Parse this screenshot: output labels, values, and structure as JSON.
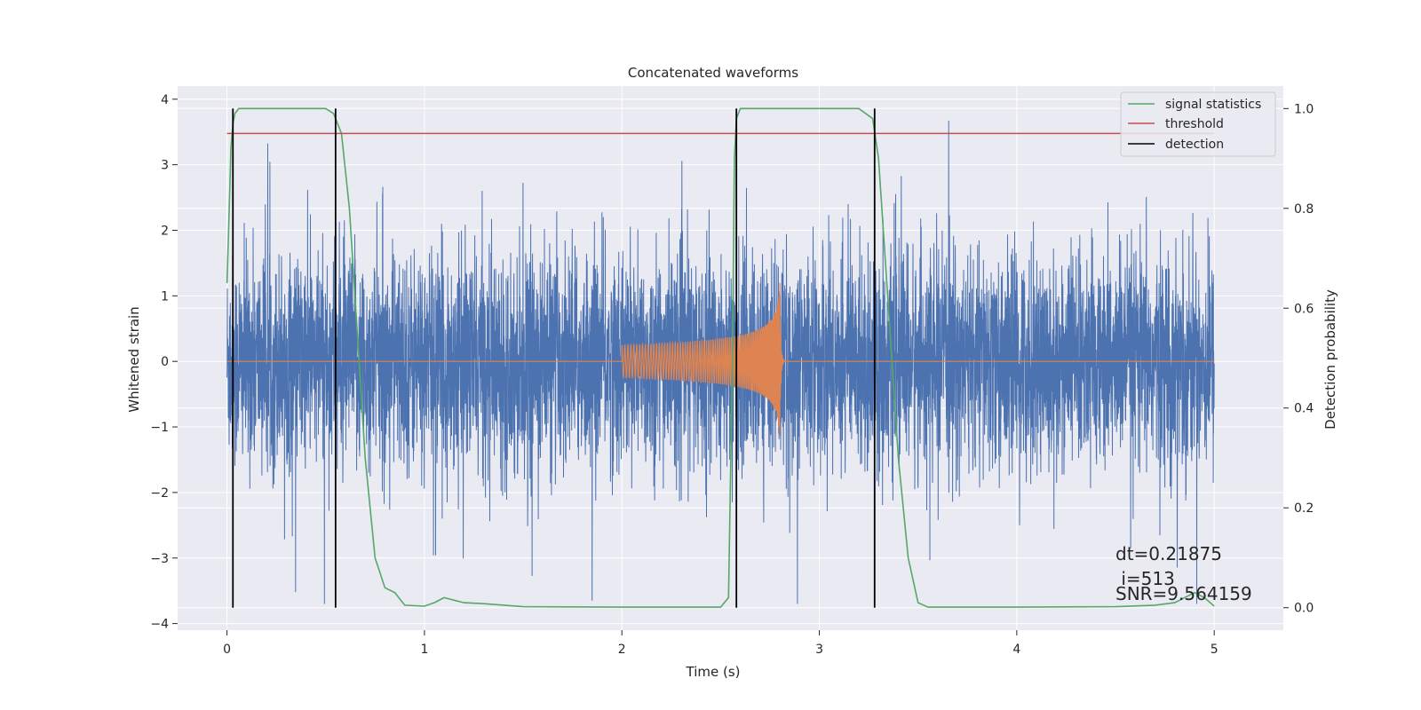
{
  "chart_data": {
    "type": "line",
    "title": "Concatenated waveforms",
    "xlabel": "Time (s)",
    "ylabel": "Whitened strain",
    "y2label": "Detection probability",
    "xlim": [
      -0.25,
      5.35
    ],
    "ylim": [
      -4.1,
      4.2
    ],
    "y2lim": [
      -0.045,
      1.045
    ],
    "xticks": [
      0,
      1,
      2,
      3,
      4,
      5
    ],
    "xtick_labels": [
      "0",
      "1",
      "2",
      "3",
      "4",
      "5"
    ],
    "yticks": [
      -4,
      -3,
      -2,
      -1,
      0,
      1,
      2,
      3,
      4
    ],
    "ytick_labels": [
      "−4",
      "−3",
      "−2",
      "−1",
      "0",
      "1",
      "2",
      "3",
      "4"
    ],
    "y2ticks": [
      0.0,
      0.2,
      0.4,
      0.6,
      0.8,
      1.0
    ],
    "y2tick_labels": [
      "0.0",
      "0.2",
      "0.4",
      "0.6",
      "0.8",
      "1.0"
    ],
    "grid": true,
    "legend_position": "top-right",
    "colors": {
      "background": "#eaeaf2",
      "grid": "#ffffff",
      "strain": "#4c72b0",
      "injection": "#dd8452",
      "signal": "#55a868",
      "threshold": "#c44e52",
      "detection": "#000000"
    },
    "strain": {
      "x_range": [
        0,
        5
      ],
      "typical_amplitude": 0.8,
      "max": 3.8,
      "min": -3.7
    },
    "injection": {
      "x_range": [
        2.0,
        2.8
      ],
      "amplitude_start": 0.25,
      "amplitude_peak": 1.2,
      "t_merger": 2.8
    },
    "series": [
      {
        "name": "signal statistics",
        "axis": "right",
        "x": [
          0,
          0.01,
          0.02,
          0.03,
          0.04,
          0.06,
          0.08,
          0.1,
          0.5,
          0.54,
          0.58,
          0.62,
          0.66,
          0.7,
          0.75,
          0.8,
          0.85,
          0.9,
          1.0,
          1.05,
          1.1,
          1.15,
          1.2,
          1.3,
          1.5,
          2.0,
          2.5,
          2.54,
          2.56,
          2.57,
          2.58,
          2.6,
          2.65,
          3.2,
          3.27,
          3.3,
          3.35,
          3.4,
          3.45,
          3.5,
          3.55,
          4.0,
          4.5,
          4.7,
          4.8,
          4.9,
          4.95,
          5.0
        ],
        "y": [
          0.65,
          0.78,
          0.92,
          0.97,
          0.99,
          1.0,
          1.0,
          1.0,
          1.0,
          0.99,
          0.95,
          0.8,
          0.55,
          0.3,
          0.1,
          0.04,
          0.03,
          0.005,
          0.003,
          0.01,
          0.02,
          0.015,
          0.01,
          0.008,
          0.002,
          0.001,
          0.001,
          0.02,
          0.5,
          0.9,
          0.98,
          1.0,
          1.0,
          1.0,
          0.98,
          0.9,
          0.6,
          0.3,
          0.1,
          0.01,
          0.001,
          0.001,
          0.002,
          0.005,
          0.01,
          0.03,
          0.02,
          0.003
        ]
      },
      {
        "name": "threshold",
        "axis": "right",
        "x": [
          0,
          5
        ],
        "y": [
          0.95,
          0.95
        ]
      },
      {
        "name": "detection",
        "axis": "right",
        "x_lines": [
          0.03,
          0.55,
          2.58,
          3.28
        ],
        "y_range": [
          0.0,
          1.0
        ]
      }
    ],
    "annotations": [
      "dt=0.21875",
      " i=513",
      "SNR=9.564159"
    ]
  }
}
